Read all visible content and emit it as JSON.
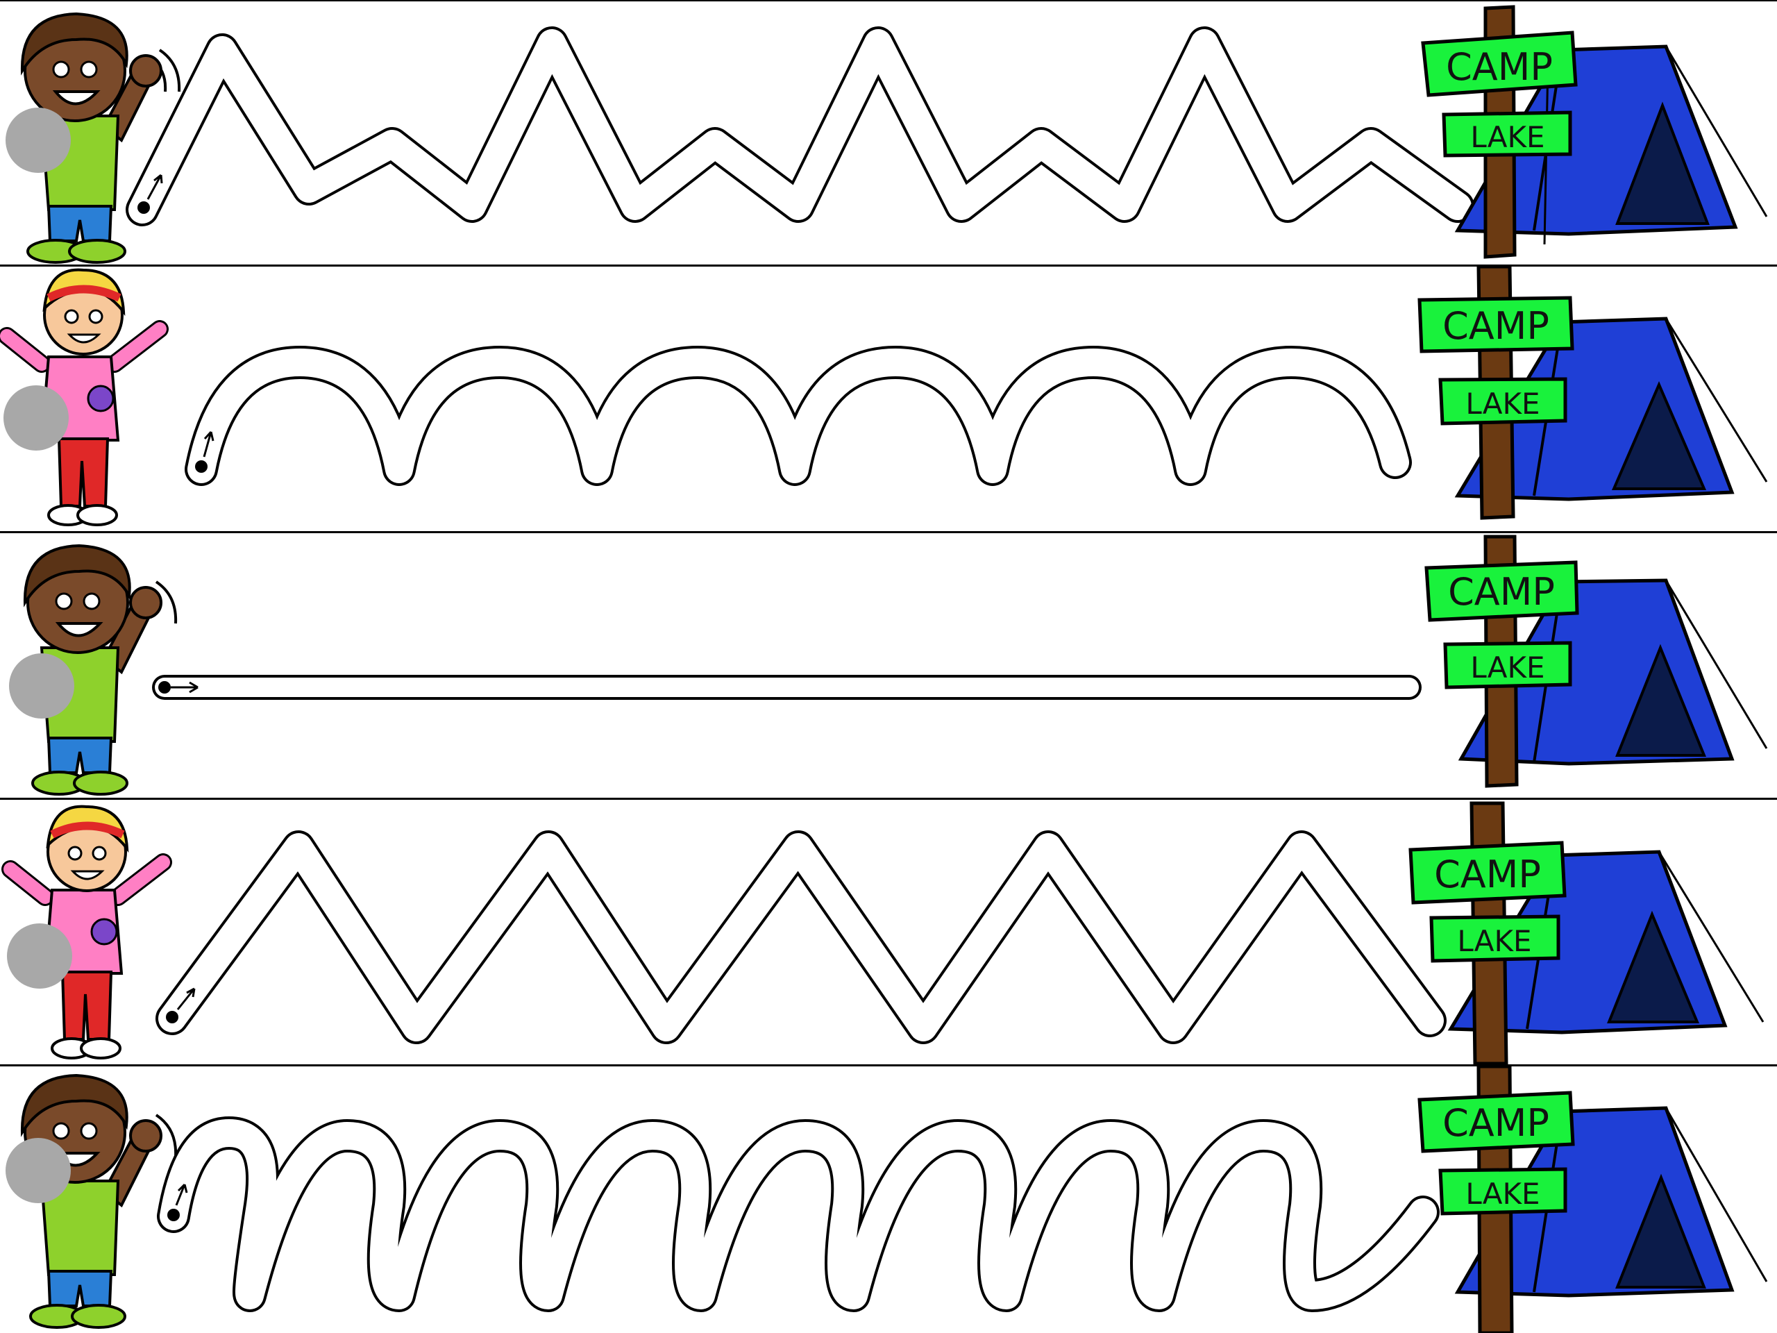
{
  "worksheet": {
    "rows": [
      {
        "path": "zigzag-mixed",
        "child": "boy",
        "sign_top": "CAMP",
        "sign_bottom": "LAKE",
        "tent_color": "#1f3fd6"
      },
      {
        "path": "arches",
        "child": "girl",
        "sign_top": "CAMP",
        "sign_bottom": "LAKE",
        "tent_color": "#1f3fd6"
      },
      {
        "path": "straight-line",
        "child": "boy",
        "sign_top": "CAMP",
        "sign_bottom": "LAKE",
        "tent_color": "#1f3fd6"
      },
      {
        "path": "zigzag",
        "child": "girl",
        "sign_top": "CAMP",
        "sign_bottom": "LAKE",
        "tent_color": "#1f3fd6"
      },
      {
        "path": "cursive-loops",
        "child": "boy",
        "sign_top": "CAMP",
        "sign_bottom": "LAKE",
        "tent_color": "#1f3fd6"
      }
    ],
    "colors": {
      "sign_green": "#19f23c",
      "post_brown": "#6b3a12",
      "boy_shirt": "#8ed12c",
      "girl_shirt": "#ff7fc4",
      "placeholder_circle": "#a8a8a8"
    }
  }
}
